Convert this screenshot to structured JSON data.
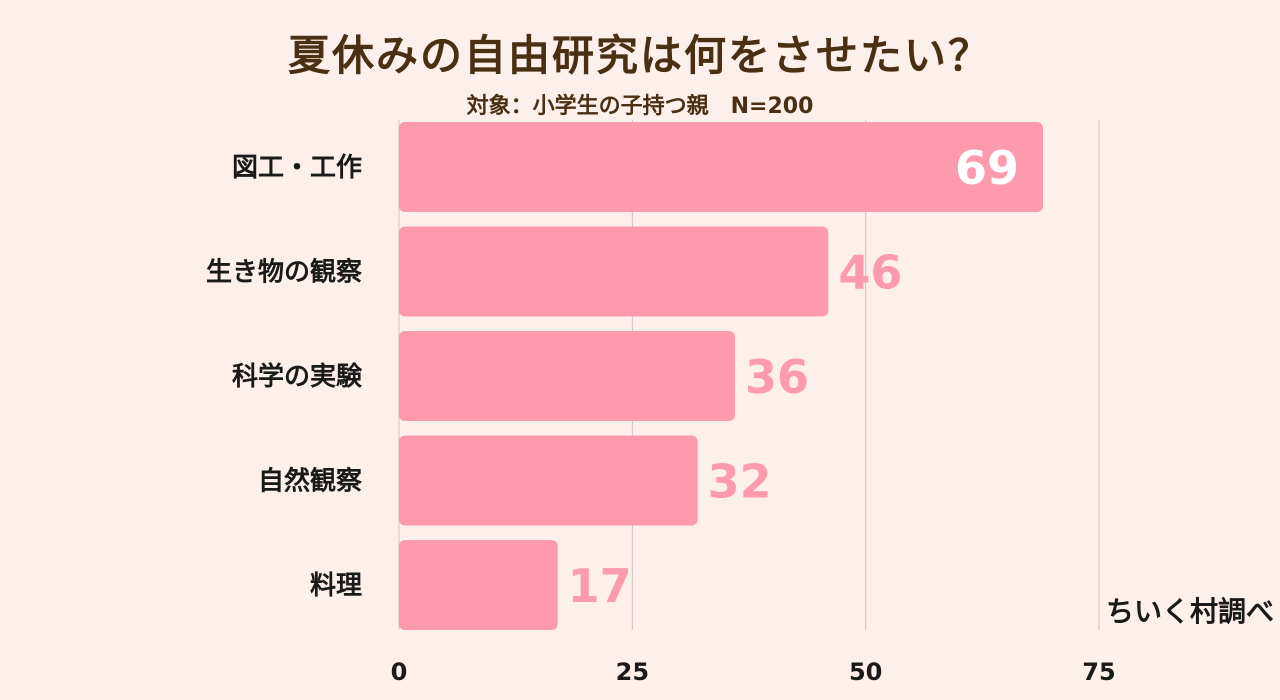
{
  "chart_data": {
    "type": "bar",
    "orientation": "horizontal",
    "title": "夏休みの自由研究は何をさせたい？",
    "subtitle": "対象：小学生の子持つ親　N=200",
    "categories": [
      "図工・工作",
      "生き物の観察",
      "科学の実験",
      "自然観察",
      "料理"
    ],
    "values": [
      69,
      46,
      36,
      32,
      17
    ],
    "xlim": [
      0,
      75
    ],
    "xticks": [
      "0",
      "25",
      "50",
      "75"
    ],
    "grid": true,
    "bar_color": "#fd9aac",
    "label_color": "#fd9aac",
    "inside_label_color": "#ffffff"
  },
  "credit": "ちいく村調べ"
}
